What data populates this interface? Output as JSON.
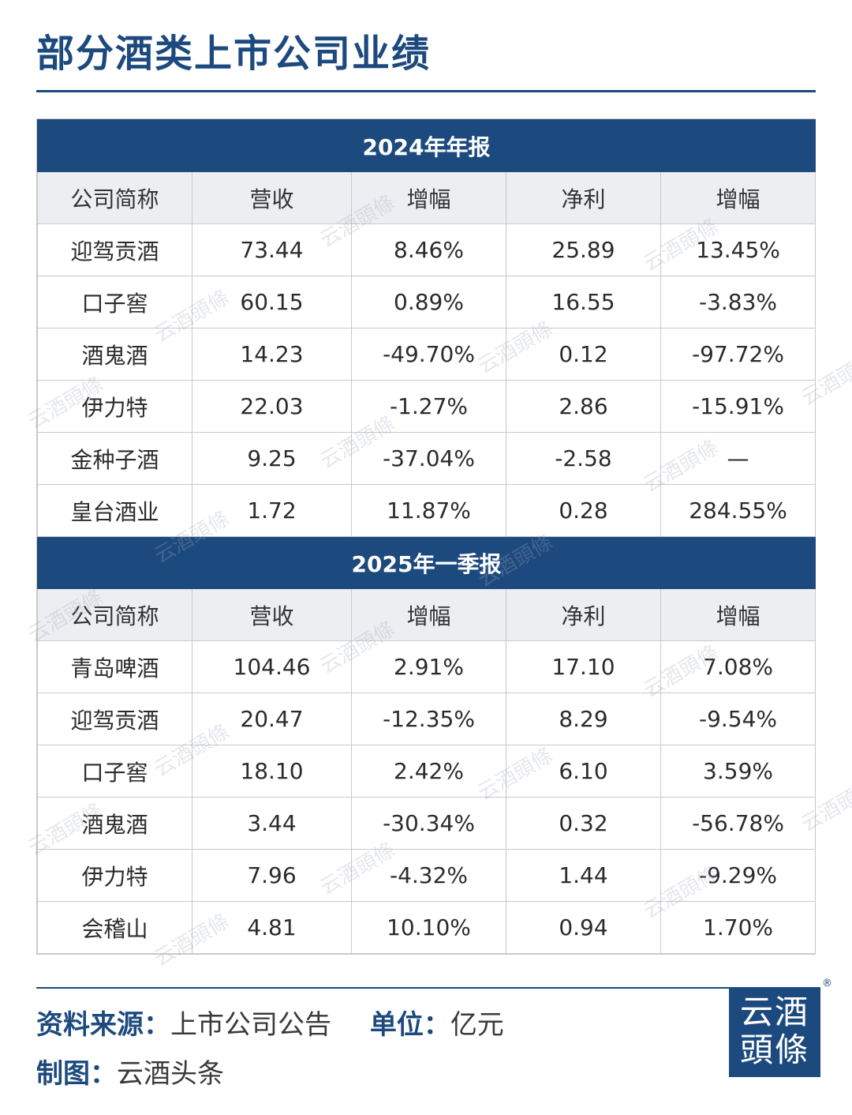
{
  "title": "部分酒类上市公司业绩",
  "columns": [
    "公司简称",
    "营收",
    "增幅",
    "净利",
    "增幅"
  ],
  "sections": [
    {
      "heading": "2024年年报",
      "rows": [
        [
          "迎驾贡酒",
          "73.44",
          "8.46%",
          "25.89",
          "13.45%"
        ],
        [
          "口子窖",
          "60.15",
          "0.89%",
          "16.55",
          "-3.83%"
        ],
        [
          "酒鬼酒",
          "14.23",
          "-49.70%",
          "0.12",
          "-97.72%"
        ],
        [
          "伊力特",
          "22.03",
          "-1.27%",
          "2.86",
          "-15.91%"
        ],
        [
          "金种子酒",
          "9.25",
          "-37.04%",
          "-2.58",
          "—"
        ],
        [
          "皇台酒业",
          "1.72",
          "11.87%",
          "0.28",
          "284.55%"
        ]
      ]
    },
    {
      "heading": "2025年一季报",
      "rows": [
        [
          "青岛啤酒",
          "104.46",
          "2.91%",
          "17.10",
          "7.08%"
        ],
        [
          "迎驾贡酒",
          "20.47",
          "-12.35%",
          "8.29",
          "-9.54%"
        ],
        [
          "口子窖",
          "18.10",
          "2.42%",
          "6.10",
          "3.59%"
        ],
        [
          "酒鬼酒",
          "3.44",
          "-30.34%",
          "0.32",
          "-56.78%"
        ],
        [
          "伊力特",
          "7.96",
          "-4.32%",
          "1.44",
          "-9.29%"
        ],
        [
          "会稽山",
          "4.81",
          "10.10%",
          "0.94",
          "1.70%"
        ]
      ]
    }
  ],
  "footer": {
    "source_label": "资料来源：",
    "source_value": "上市公司公告",
    "unit_label": "单位：",
    "unit_value": "亿元",
    "credit_label": "制图：",
    "credit_value": "云酒头条"
  },
  "logo": {
    "line1": "云酒",
    "line2": "頭條",
    "mark": "®"
  },
  "watermark_text": "云酒頭條",
  "colors": {
    "accent": "#1d4a7e",
    "header_bg": "#eceef1",
    "border": "#c9c9c9"
  }
}
